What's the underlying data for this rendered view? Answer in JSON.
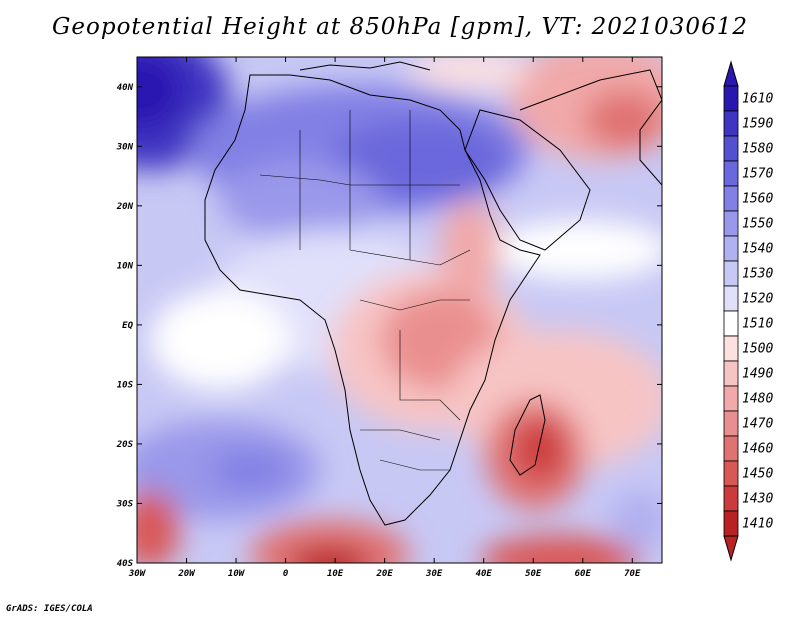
{
  "title": "Geopotential Height at 850hPa [gpm], VT: 2021030612",
  "footer": "GrADS: IGES/COLA",
  "lat_labels": [
    "40N",
    "30N",
    "20N",
    "10N",
    "EQ",
    "10S",
    "20S",
    "30S",
    "40S"
  ],
  "lat_values": [
    40,
    30,
    20,
    10,
    0,
    -10,
    -20,
    -30,
    -40
  ],
  "lon_labels": [
    "30W",
    "20W",
    "10W",
    "0",
    "10E",
    "20E",
    "30E",
    "40E",
    "50E",
    "60E",
    "70E"
  ],
  "lon_values": [
    -30,
    -20,
    -10,
    0,
    10,
    20,
    30,
    40,
    50,
    60,
    70
  ],
  "colorbar": {
    "labels": [
      "1610",
      "1590",
      "1580",
      "1570",
      "1560",
      "1550",
      "1540",
      "1530",
      "1520",
      "1510",
      "1500",
      "1490",
      "1480",
      "1470",
      "1460",
      "1450",
      "1430",
      "1410"
    ],
    "colors": [
      "#2a17b0",
      "#3f35c2",
      "#5550d0",
      "#6a68dc",
      "#8280e4",
      "#9a98ea",
      "#b1b0f0",
      "#c8c8f5",
      "#e0e0fb",
      "#ffffff",
      "#fde0e0",
      "#f7c4c4",
      "#f1a9a9",
      "#ea8f8f",
      "#e07272",
      "#d85858",
      "#cc3b3b",
      "#b82222"
    ]
  }
}
